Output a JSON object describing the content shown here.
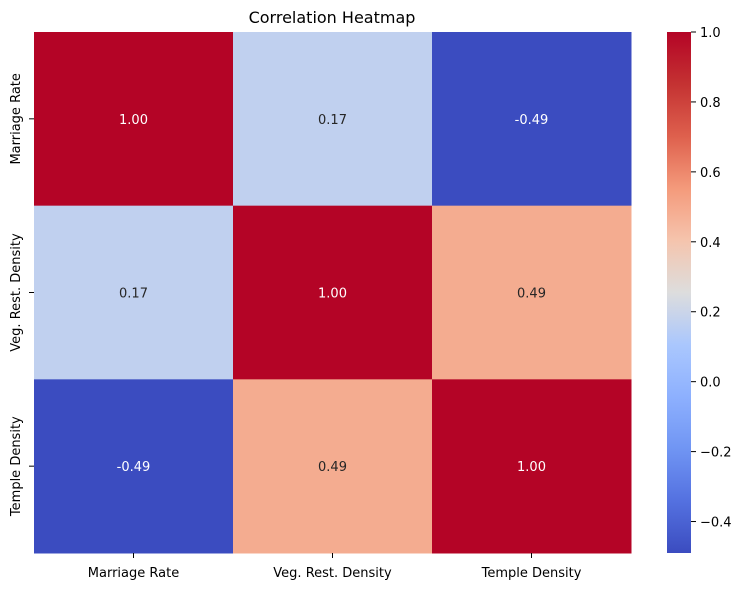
{
  "chart_data": {
    "type": "heatmap",
    "title": "Correlation Heatmap",
    "xlabel": "",
    "ylabel": "",
    "x_categories": [
      "Marriage Rate",
      "Veg. Rest. Density",
      "Temple Density"
    ],
    "y_categories": [
      "Marriage Rate",
      "Veg. Rest. Density",
      "Temple Density"
    ],
    "values": [
      [
        1.0,
        0.17,
        -0.49
      ],
      [
        0.17,
        1.0,
        0.49
      ],
      [
        -0.49,
        0.49,
        1.0
      ]
    ],
    "cell_labels": [
      [
        "1.00",
        "0.17",
        "-0.49"
      ],
      [
        "0.17",
        "1.00",
        "0.49"
      ],
      [
        "-0.49",
        "0.49",
        "1.00"
      ]
    ],
    "colormap": "coolwarm",
    "colorbar": {
      "vmin": -0.49,
      "vmax": 1.0,
      "ticks": [
        -0.4,
        -0.2,
        0.0,
        0.2,
        0.4,
        0.6,
        0.8,
        1.0
      ],
      "tick_labels": [
        "−0.4",
        "−0.2",
        "0.0",
        "0.2",
        "0.4",
        "0.6",
        "0.8",
        "1.0"
      ]
    }
  }
}
